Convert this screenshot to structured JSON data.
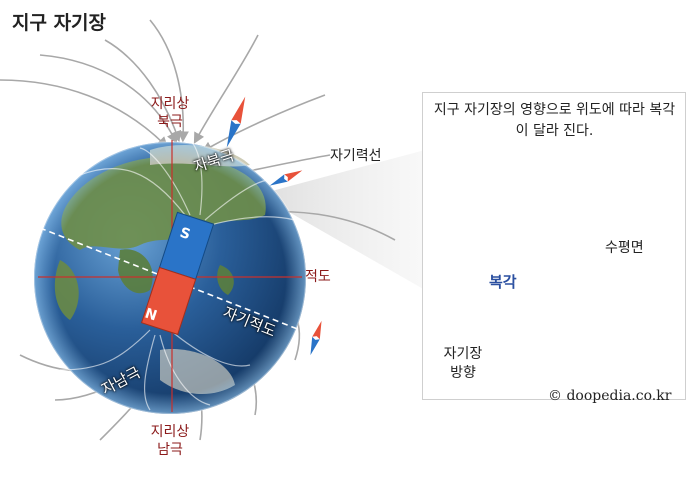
{
  "title": "지구 자기장",
  "labels": {
    "geo_north_line1": "지리상",
    "geo_north_line2": "북극",
    "geo_south_line1": "지리상",
    "geo_south_line2": "남극",
    "mag_north": "자북극",
    "mag_south": "자남극",
    "field_lines": "자기력선",
    "equator": "적도",
    "mag_equator": "자기적도",
    "magnet_s": "S",
    "magnet_n": "N"
  },
  "inset": {
    "caption": "지구 자기장의 영향으로 위도에 따라 복각이 달라 진다.",
    "horizontal": "수평면",
    "dip_angle": "복각",
    "field_dir_line1": "자기장",
    "field_dir_line2": "방향"
  },
  "credit": "© doopedia.co.kr",
  "colors": {
    "geo_label": "#8b1a1a",
    "magnet_north": "#e8523a",
    "magnet_south": "#2a74c8",
    "field_line": "#a8a8a8",
    "equator_line": "#c9302c"
  }
}
